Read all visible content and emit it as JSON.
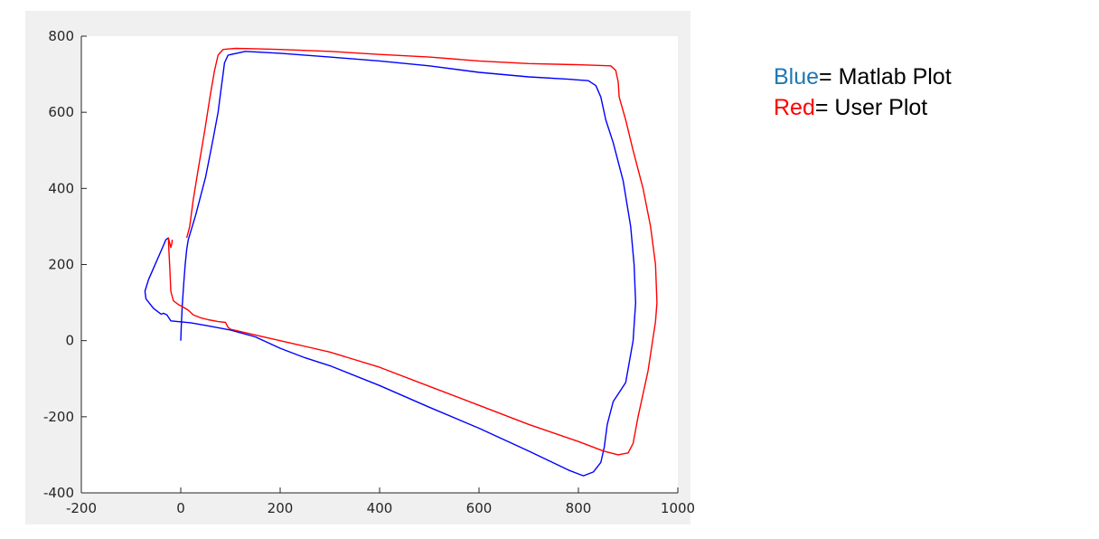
{
  "chart_data": {
    "type": "line",
    "title": "",
    "xlabel": "",
    "ylabel": "",
    "xlim": [
      -200,
      1000
    ],
    "ylim": [
      -400,
      800
    ],
    "xticks": [
      "-200",
      "0",
      "200",
      "400",
      "600",
      "800",
      "1000"
    ],
    "yticks": [
      "800",
      "600",
      "400",
      "200",
      "0",
      "-200",
      "-400"
    ],
    "grid": false,
    "series": [
      {
        "color": "#0000ff",
        "points": [
          [
            0,
            0
          ],
          [
            1,
            40
          ],
          [
            3,
            90
          ],
          [
            6,
            150
          ],
          [
            9,
            200
          ],
          [
            12,
            240
          ],
          [
            15,
            265
          ],
          [
            30,
            330
          ],
          [
            50,
            430
          ],
          [
            65,
            530
          ],
          [
            75,
            600
          ],
          [
            80,
            650
          ],
          [
            85,
            700
          ],
          [
            88,
            730
          ],
          [
            95,
            750
          ],
          [
            130,
            760
          ],
          [
            200,
            755
          ],
          [
            300,
            745
          ],
          [
            400,
            735
          ],
          [
            500,
            722
          ],
          [
            600,
            705
          ],
          [
            700,
            693
          ],
          [
            780,
            687
          ],
          [
            820,
            683
          ],
          [
            835,
            670
          ],
          [
            845,
            640
          ],
          [
            855,
            580
          ],
          [
            870,
            520
          ],
          [
            890,
            420
          ],
          [
            905,
            300
          ],
          [
            912,
            200
          ],
          [
            915,
            100
          ],
          [
            910,
            0
          ],
          [
            895,
            -110
          ],
          [
            870,
            -160
          ],
          [
            858,
            -220
          ],
          [
            852,
            -280
          ],
          [
            845,
            -320
          ],
          [
            830,
            -345
          ],
          [
            810,
            -355
          ],
          [
            780,
            -340
          ],
          [
            700,
            -290
          ],
          [
            600,
            -230
          ],
          [
            500,
            -175
          ],
          [
            400,
            -118
          ],
          [
            300,
            -66
          ],
          [
            250,
            -45
          ],
          [
            200,
            -20
          ],
          [
            150,
            10
          ],
          [
            100,
            28
          ],
          [
            50,
            40
          ],
          [
            20,
            47
          ],
          [
            -20,
            52
          ],
          [
            -25,
            62
          ],
          [
            -28,
            68
          ],
          [
            -35,
            72
          ],
          [
            -38,
            70
          ],
          [
            -40,
            70
          ],
          [
            -55,
            85
          ],
          [
            -70,
            110
          ],
          [
            -72,
            130
          ],
          [
            -65,
            160
          ],
          [
            -55,
            190
          ],
          [
            -45,
            220
          ],
          [
            -35,
            250
          ],
          [
            -30,
            265
          ],
          [
            -25,
            270
          ]
        ]
      },
      {
        "color": "#ff0000",
        "points": [
          [
            -17,
            265
          ],
          [
            -18,
            255
          ],
          [
            -20,
            245
          ],
          [
            -25,
            270
          ],
          [
            -24,
            240
          ],
          [
            -22,
            190
          ],
          [
            -20,
            130
          ],
          [
            -15,
            105
          ],
          [
            -5,
            95
          ],
          [
            5,
            88
          ],
          [
            15,
            80
          ],
          [
            25,
            68
          ],
          [
            40,
            60
          ],
          [
            55,
            55
          ],
          [
            75,
            50
          ],
          [
            90,
            48
          ],
          [
            95,
            35
          ],
          [
            100,
            30
          ],
          [
            150,
            15
          ],
          [
            200,
            0
          ],
          [
            250,
            -15
          ],
          [
            300,
            -30
          ],
          [
            400,
            -70
          ],
          [
            500,
            -120
          ],
          [
            600,
            -170
          ],
          [
            700,
            -220
          ],
          [
            800,
            -265
          ],
          [
            850,
            -290
          ],
          [
            880,
            -300
          ],
          [
            900,
            -295
          ],
          [
            910,
            -270
          ],
          [
            920,
            -200
          ],
          [
            940,
            -80
          ],
          [
            955,
            50
          ],
          [
            958,
            100
          ],
          [
            955,
            200
          ],
          [
            945,
            300
          ],
          [
            930,
            400
          ],
          [
            910,
            500
          ],
          [
            895,
            580
          ],
          [
            882,
            640
          ],
          [
            880,
            680
          ],
          [
            875,
            710
          ],
          [
            865,
            722
          ],
          [
            800,
            725
          ],
          [
            700,
            728
          ],
          [
            600,
            735
          ],
          [
            500,
            745
          ],
          [
            400,
            752
          ],
          [
            300,
            760
          ],
          [
            200,
            765
          ],
          [
            150,
            767
          ],
          [
            110,
            768
          ],
          [
            85,
            765
          ],
          [
            75,
            750
          ],
          [
            68,
            710
          ],
          [
            60,
            650
          ],
          [
            48,
            550
          ],
          [
            35,
            450
          ],
          [
            25,
            370
          ],
          [
            18,
            300
          ],
          [
            12,
            270
          ]
        ]
      }
    ]
  },
  "legend": {
    "blue_word": "Blue",
    "blue_rest": "= Matlab Plot",
    "red_word": "Red",
    "red_rest": "= User Plot",
    "blue_color": "#1f77b4",
    "red_color": "#ff0000"
  }
}
